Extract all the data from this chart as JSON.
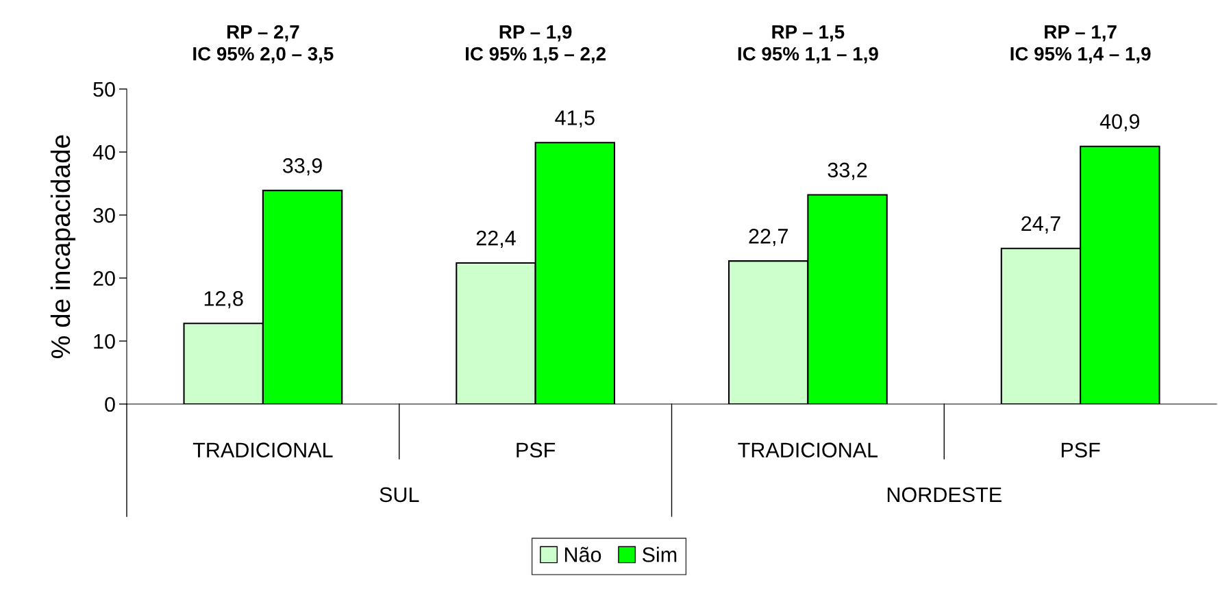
{
  "chart_data": {
    "type": "bar",
    "ylabel": "% de incapacidade",
    "categories": [
      "TRADICIONAL",
      "PSF",
      "TRADICIONAL",
      "PSF"
    ],
    "series": [
      {
        "name": "Não",
        "color": "#ccffcc",
        "values": [
          12.8,
          22.4,
          22.7,
          24.7
        ],
        "value_labels": [
          "12,8",
          "22,4",
          "22,7",
          "24,7"
        ]
      },
      {
        "name": "Sim",
        "color": "#00ff00",
        "values": [
          33.9,
          41.5,
          33.2,
          40.9
        ],
        "value_labels": [
          "33,9",
          "41,5",
          "33,2",
          "40,9"
        ]
      }
    ],
    "ylim": [
      0,
      50
    ],
    "yticks": [
      0,
      10,
      20,
      30,
      40,
      50
    ],
    "annotations": [
      "RP – 2,7\nIC 95% 2,0 – 3,5",
      "RP – 1,9\nIC 95% 1,5 – 2,2",
      "RP – 1,5\nIC 95% 1,1 – 1,9",
      "RP – 1,7\nIC 95% 1,4 – 1,9",
      "SUL",
      "NORDESTE"
    ],
    "grid": false,
    "legend": "bottom"
  }
}
